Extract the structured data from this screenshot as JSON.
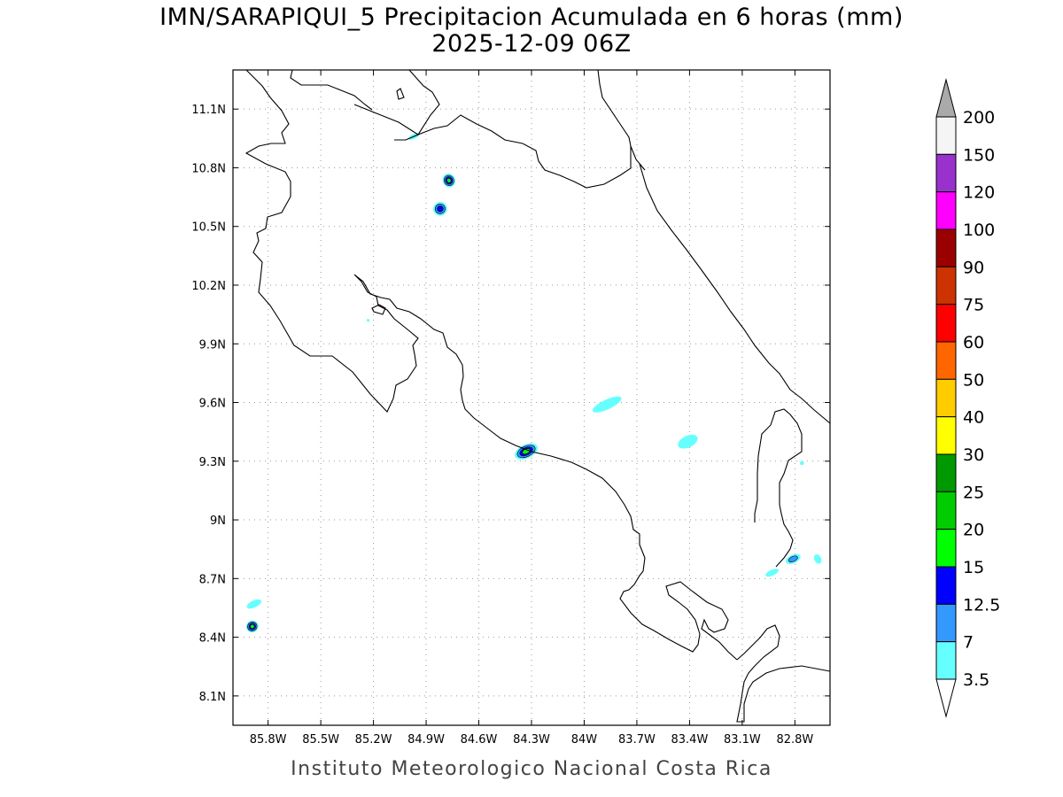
{
  "title": {
    "line1": "IMN/SARAPIQUI_5 Precipitacion Acumulada en 6 horas (mm)",
    "line2": "2025-12-09 06Z"
  },
  "footer": "Instituto Meteorologico Nacional Costa Rica",
  "map": {
    "lon_range": [
      -86.0,
      -82.6
    ],
    "lat_range": [
      7.95,
      11.3
    ],
    "lon_ticks": [
      {
        "value": -85.8,
        "label": "85.8W"
      },
      {
        "value": -85.5,
        "label": "85.5W"
      },
      {
        "value": -85.2,
        "label": "85.2W"
      },
      {
        "value": -84.9,
        "label": "84.9W"
      },
      {
        "value": -84.6,
        "label": "84.6W"
      },
      {
        "value": -84.3,
        "label": "84.3W"
      },
      {
        "value": -84.0,
        "label": "84W"
      },
      {
        "value": -83.7,
        "label": "83.7W"
      },
      {
        "value": -83.4,
        "label": "83.4W"
      },
      {
        "value": -83.1,
        "label": "83.1W"
      },
      {
        "value": -82.8,
        "label": "82.8W"
      }
    ],
    "lat_ticks": [
      {
        "value": 11.1,
        "label": "11.1N"
      },
      {
        "value": 10.8,
        "label": "10.8N"
      },
      {
        "value": 10.5,
        "label": "10.5N"
      },
      {
        "value": 10.2,
        "label": "10.2N"
      },
      {
        "value": 9.9,
        "label": "9.9N"
      },
      {
        "value": 9.6,
        "label": "9.6N"
      },
      {
        "value": 9.3,
        "label": "9.3N"
      },
      {
        "value": 9.0,
        "label": "9N"
      },
      {
        "value": 8.7,
        "label": "8.7N"
      },
      {
        "value": 8.4,
        "label": "8.4N"
      },
      {
        "value": 8.1,
        "label": "8.1N"
      }
    ],
    "grid": true
  },
  "colorbar": {
    "levels": [
      "200",
      "150",
      "120",
      "100",
      "90",
      "75",
      "60",
      "50",
      "40",
      "30",
      "25",
      "20",
      "15",
      "12.5",
      "7",
      "3.5"
    ],
    "colors": [
      "#f5f5f5",
      "#9932cc",
      "#ff00ff",
      "#9b0000",
      "#cc3300",
      "#ff0000",
      "#ff6600",
      "#ffcc00",
      "#ffff00",
      "#009900",
      "#00cc00",
      "#00ff00",
      "#0000ff",
      "#3399ff",
      "#66ffff"
    ],
    "top_arrow_color": "#aaaaaa",
    "bottom_arrow_color": "#ffffff"
  },
  "precip_cells": [
    {
      "lon": -84.77,
      "lat": 10.735,
      "rx": 0.035,
      "ry": 0.035,
      "levels": [
        "#66ffff",
        "#3399ff",
        "#0000ff",
        "#00ff00"
      ]
    },
    {
      "lon": -84.82,
      "lat": 10.59,
      "rx": 0.04,
      "ry": 0.035,
      "levels": [
        "#66ffff",
        "#3399ff",
        "#0000ff"
      ]
    },
    {
      "lon": -84.97,
      "lat": 10.96,
      "rx": 0.035,
      "ry": 0.012,
      "levels": [
        "#66ffff"
      ]
    },
    {
      "lon": -84.33,
      "lat": 9.35,
      "rx": 0.07,
      "ry": 0.035,
      "levels": [
        "#66ffff",
        "#3399ff",
        "#0000ff",
        "#00ff00"
      ]
    },
    {
      "lon": -83.87,
      "lat": 9.59,
      "rx": 0.09,
      "ry": 0.025,
      "levels": [
        "#66ffff"
      ]
    },
    {
      "lon": -83.41,
      "lat": 9.4,
      "rx": 0.06,
      "ry": 0.03,
      "levels": [
        "#66ffff"
      ]
    },
    {
      "lon": -82.81,
      "lat": 8.8,
      "rx": 0.045,
      "ry": 0.022,
      "levels": [
        "#66ffff",
        "#3399ff"
      ]
    },
    {
      "lon": -82.93,
      "lat": 8.73,
      "rx": 0.04,
      "ry": 0.015,
      "levels": [
        "#66ffff"
      ]
    },
    {
      "lon": -82.67,
      "lat": 8.8,
      "rx": 0.02,
      "ry": 0.025,
      "levels": [
        "#66ffff"
      ]
    },
    {
      "lon": -82.76,
      "lat": 9.29,
      "rx": 0.012,
      "ry": 0.01,
      "levels": [
        "#66ffff"
      ]
    },
    {
      "lon": -85.88,
      "lat": 8.57,
      "rx": 0.045,
      "ry": 0.018,
      "levels": [
        "#66ffff"
      ]
    },
    {
      "lon": -85.89,
      "lat": 8.455,
      "rx": 0.035,
      "ry": 0.03,
      "levels": [
        "#66ffff",
        "#3399ff",
        "#0000ff",
        "#00ff00"
      ]
    },
    {
      "lon": -85.23,
      "lat": 10.02,
      "rx": 0.008,
      "ry": 0.008,
      "levels": [
        "#66ffff"
      ]
    }
  ]
}
